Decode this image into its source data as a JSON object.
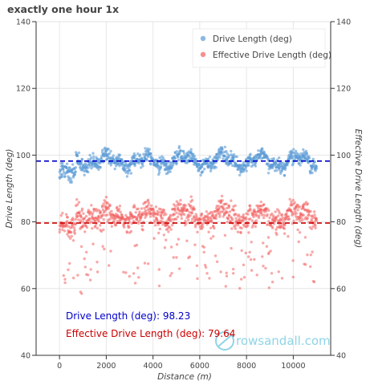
{
  "chart_data": {
    "type": "scatter",
    "title": "exactly one hour 1x",
    "xlabel": "Distance (m)",
    "ylabel": "Drive Length (deg)",
    "y2label": "Effective Drive Length (deg)",
    "xlim": [
      -1000,
      11600
    ],
    "ylim": [
      40,
      140
    ],
    "xticks": [
      0,
      2000,
      4000,
      6000,
      8000,
      10000
    ],
    "yticks": [
      40,
      60,
      80,
      100,
      120,
      140
    ],
    "grid": true,
    "legend_position": "top-right",
    "x_points_approx": 1000,
    "series": [
      {
        "name": "Drive Length (deg)",
        "color": "#5b9bd5",
        "mean": 98.23,
        "min": 85,
        "max": 105
      },
      {
        "name": "Effective Drive Length (deg)",
        "color": "#f26060",
        "mean": 79.64,
        "min": 58,
        "max": 92
      }
    ],
    "hlines": [
      {
        "y": 98.23,
        "color": "#0000cc",
        "style": "dashed"
      },
      {
        "y": 79.64,
        "color": "#cc0000",
        "style": "dashed"
      }
    ],
    "annotations": [
      {
        "text": "Drive Length (deg): 98.23",
        "color": "#0000cc"
      },
      {
        "text": "Effective Drive Length (deg): 79.64",
        "color": "#cc0000"
      }
    ]
  },
  "watermark": {
    "text": "rowsandall.com",
    "color": "#8fd4e6"
  }
}
